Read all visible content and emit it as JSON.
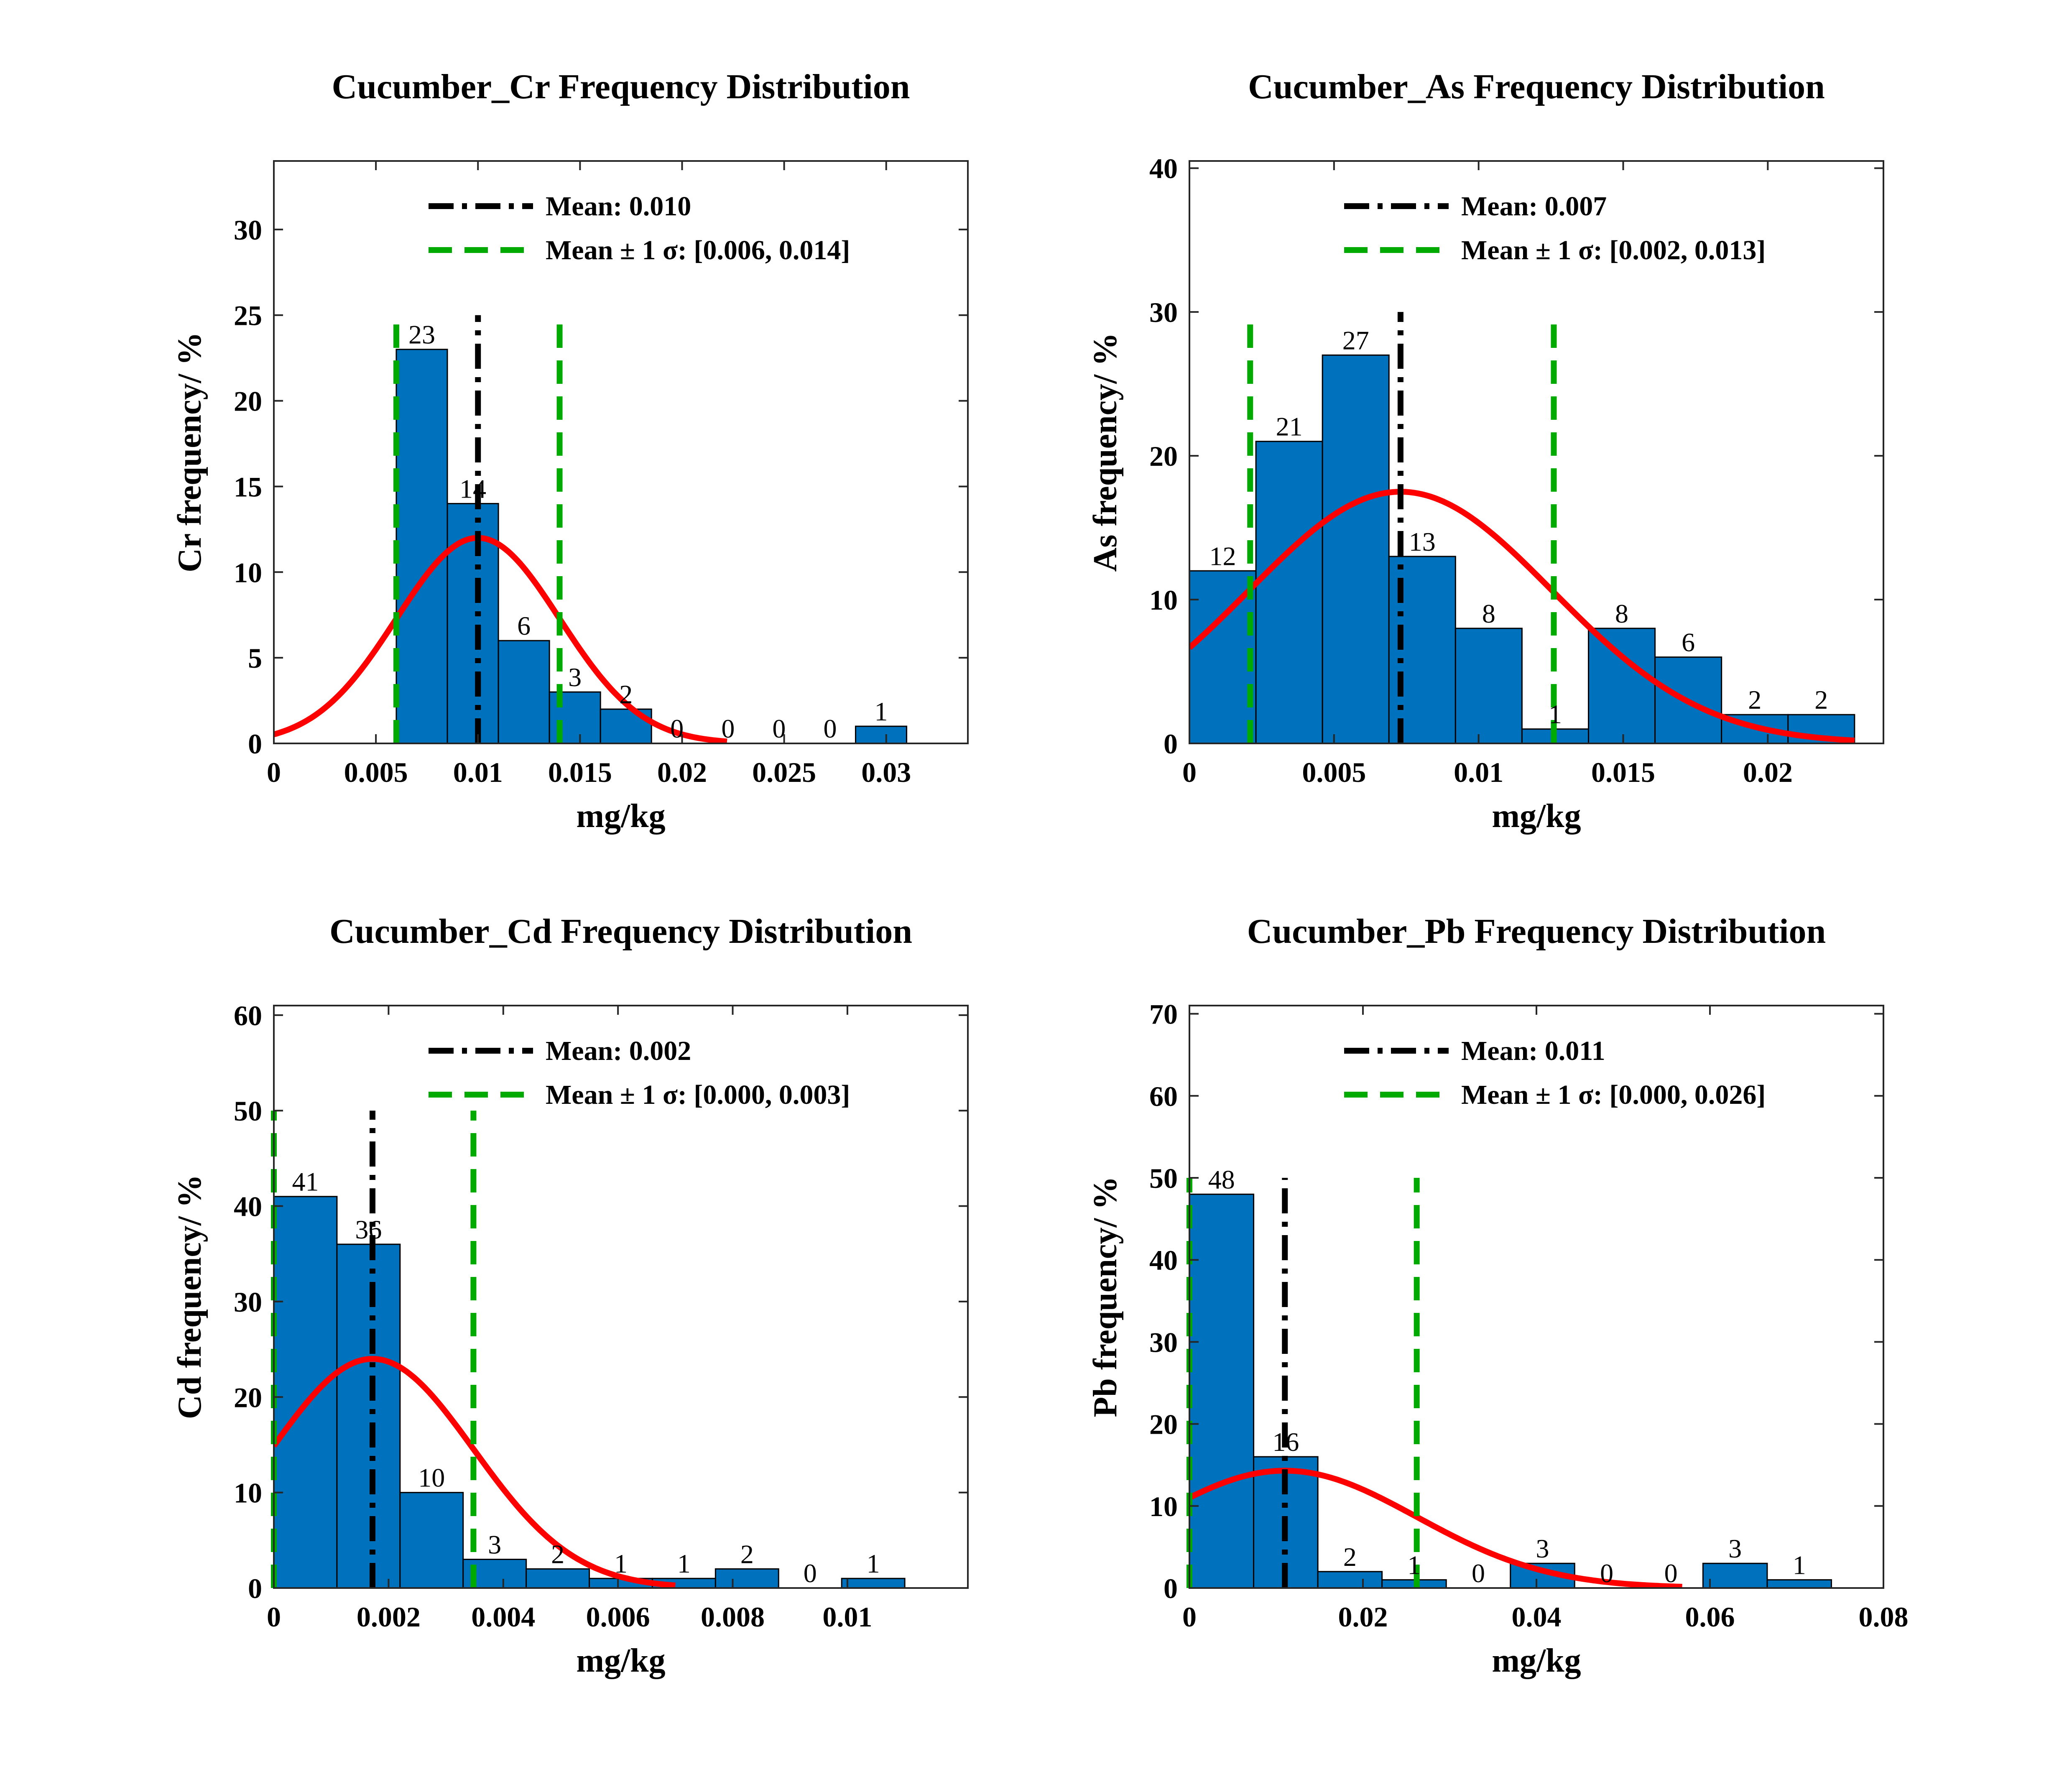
{
  "colors": {
    "bar_fill": "#0072bd",
    "bar_stroke": "#000000",
    "fit_curve": "#ff0000",
    "mean_line": "#000000",
    "sigma_line": "#00aa00"
  },
  "chart_data": [
    {
      "type": "bar",
      "title": "Cucumber_Cr Frequency Distribution",
      "xlabel": "mg/kg",
      "ylabel": "Cr frequency/ %",
      "xlim": [
        0,
        0.034
      ],
      "ylim": [
        0,
        34
      ],
      "xticks": [
        0,
        0.005,
        0.01,
        0.015,
        0.02,
        0.025,
        0.03
      ],
      "xtick_labels": [
        "0",
        "0.005",
        "0.01",
        "0.015",
        "0.02",
        "0.025",
        "0.03"
      ],
      "yticks": [
        0,
        5,
        10,
        15,
        20,
        25,
        30
      ],
      "ytick_labels": [
        "0",
        "5",
        "10",
        "15",
        "20",
        "25",
        "30"
      ],
      "bin_edges": [
        0.006,
        0.0085,
        0.011,
        0.0135,
        0.016,
        0.0185,
        0.021,
        0.0235,
        0.026,
        0.0285,
        0.031
      ],
      "values": [
        23,
        14,
        6,
        3,
        2,
        0,
        0,
        0,
        0,
        1
      ],
      "value_labels": [
        "23",
        "14",
        "6",
        "3",
        "2",
        "0",
        "0",
        "0",
        "0",
        "1"
      ],
      "mean": 0.01,
      "sigma_bounds": [
        0.006,
        0.014
      ],
      "reference_line_top": 25,
      "fit_peak": 12,
      "fit_range": [
        0,
        0.0222
      ],
      "legend": {
        "mean_label": "Mean: 0.010",
        "sigma_label": "Mean ± 1 σ: [0.006, 0.014]",
        "position": "top"
      }
    },
    {
      "type": "bar",
      "title": "Cucumber_As Frequency Distribution",
      "xlabel": "mg/kg",
      "ylabel": "As frequency/ %",
      "xlim": [
        0,
        0.024
      ],
      "ylim": [
        0,
        40.5
      ],
      "xticks": [
        0,
        0.005,
        0.01,
        0.015,
        0.02
      ],
      "xtick_labels": [
        "0",
        "0.005",
        "0.01",
        "0.015",
        "0.02"
      ],
      "yticks": [
        0,
        10,
        20,
        30,
        40
      ],
      "ytick_labels": [
        "0",
        "10",
        "20",
        "30",
        "40"
      ],
      "bin_edges": [
        0,
        0.0023,
        0.0046,
        0.0069,
        0.0092,
        0.0115,
        0.0138,
        0.0161,
        0.0184,
        0.0207,
        0.023
      ],
      "values": [
        12,
        21,
        27,
        13,
        8,
        1,
        8,
        6,
        2,
        2
      ],
      "value_labels": [
        "12",
        "21",
        "27",
        "13",
        "8",
        "1",
        "8",
        "6",
        "2",
        "2"
      ],
      "mean": 0.0073,
      "sigma_bounds": [
        0.0021,
        0.0126
      ],
      "reference_line_top": 30,
      "fit_peak": 17.5,
      "fit_range": [
        0,
        0.023
      ],
      "legend": {
        "mean_label": "Mean: 0.007",
        "sigma_label": "Mean ± 1 σ: [0.002, 0.013]",
        "position": "top"
      }
    },
    {
      "type": "bar",
      "title": "Cucumber_Cd Frequency Distribution",
      "xlabel": "mg/kg",
      "ylabel": "Cd frequency/ %",
      "xlim": [
        0,
        0.0121
      ],
      "ylim": [
        0,
        61
      ],
      "xticks": [
        0,
        0.002,
        0.004,
        0.006,
        0.008,
        0.01
      ],
      "xtick_labels": [
        "0",
        "0.002",
        "0.004",
        "0.006",
        "0.008",
        "0.01"
      ],
      "yticks": [
        0,
        10,
        20,
        30,
        40,
        50,
        60
      ],
      "ytick_labels": [
        "0",
        "10",
        "20",
        "30",
        "40",
        "50",
        "60"
      ],
      "bin_edges": [
        0,
        0.0011,
        0.0022,
        0.0033,
        0.0044,
        0.0055,
        0.0066,
        0.0077,
        0.0088,
        0.0099,
        0.011
      ],
      "values": [
        41,
        36,
        10,
        3,
        2,
        1,
        1,
        2,
        0,
        1
      ],
      "value_labels": [
        "41",
        "36",
        "10",
        "3",
        "2",
        "1",
        "1",
        "2",
        "0",
        "1"
      ],
      "mean": 0.00172,
      "sigma_bounds": [
        0.0,
        0.00348
      ],
      "reference_line_top": 50,
      "fit_peak": 24,
      "fit_range": [
        0,
        0.007
      ],
      "legend": {
        "mean_label": "Mean: 0.002",
        "sigma_label": "Mean ± 1 σ: [0.000, 0.003]",
        "position": "top"
      }
    },
    {
      "type": "bar",
      "title": "Cucumber_Pb Frequency Distribution",
      "xlabel": "mg/kg",
      "ylabel": "Pb frequency/ %",
      "xlim": [
        0,
        0.08
      ],
      "ylim": [
        0,
        71
      ],
      "xticks": [
        0,
        0.02,
        0.04,
        0.06,
        0.08
      ],
      "xtick_labels": [
        "0",
        "0.02",
        "0.04",
        "0.06",
        "0.08"
      ],
      "yticks": [
        0,
        10,
        20,
        30,
        40,
        50,
        60,
        70
      ],
      "ytick_labels": [
        "0",
        "10",
        "20",
        "30",
        "40",
        "50",
        "60",
        "70"
      ],
      "bin_edges": [
        0,
        0.0074,
        0.0148,
        0.0222,
        0.0296,
        0.037,
        0.0444,
        0.0518,
        0.0592,
        0.0666,
        0.074
      ],
      "values": [
        48,
        16,
        2,
        1,
        0,
        3,
        0,
        0,
        3,
        1
      ],
      "value_labels": [
        "48",
        "16",
        "2",
        "1",
        "0",
        "3",
        "0",
        "0",
        "3",
        "1"
      ],
      "mean": 0.011,
      "sigma_bounds": [
        0.0,
        0.0262
      ],
      "reference_line_top": 50,
      "fit_peak": 14.3,
      "fit_range": [
        0,
        0.0568
      ],
      "legend": {
        "mean_label": "Mean: 0.011",
        "sigma_label": "Mean ± 1 σ: [0.000, 0.026]",
        "position": "top"
      }
    }
  ]
}
